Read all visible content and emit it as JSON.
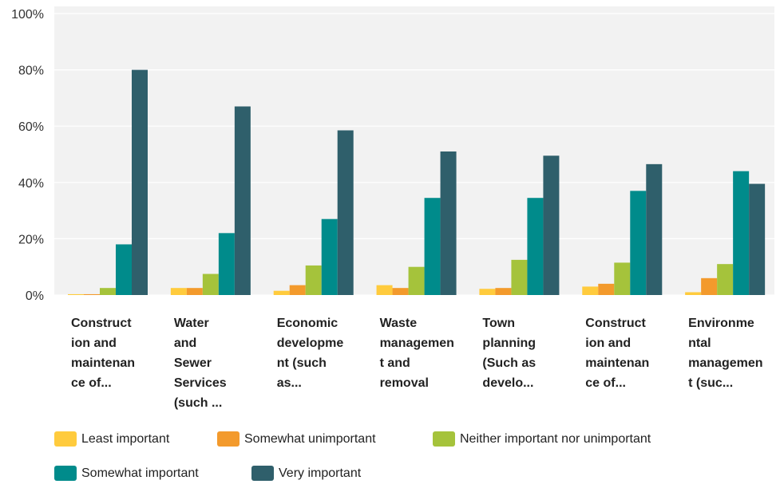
{
  "chart_data": {
    "type": "bar",
    "categories": [
      "Construct\nion and\nmaintenan\nce of...",
      "Water\nand\nSewer\nServices\n(such ...",
      "Economic\ndevelopme\nnt (such\nas...",
      "Waste\nmanagemen\nt and\nremoval",
      "Town\nplanning\n(Such as\ndevelo...",
      "Construct\nion and\nmaintenan\nce of...",
      "Environme\nntal\nmanagemen\nt (suc..."
    ],
    "series": [
      {
        "name": "Least important",
        "color": "#FFCB3D",
        "values": [
          0.3,
          2.5,
          1.5,
          3.5,
          2.2,
          3.0,
          1.0
        ]
      },
      {
        "name": "Somewhat unimportant",
        "color": "#F39A2C",
        "values": [
          0.3,
          2.5,
          3.5,
          2.5,
          2.5,
          4.0,
          6.0
        ]
      },
      {
        "name": "Neither important nor unimportant",
        "color": "#A5C33B",
        "values": [
          2.5,
          7.5,
          10.5,
          10.0,
          12.5,
          11.5,
          11.0
        ]
      },
      {
        "name": "Somewhat important",
        "color": "#008B8B",
        "values": [
          18.0,
          22.0,
          27.0,
          34.5,
          34.5,
          37.0,
          44.0
        ]
      },
      {
        "name": "Very important",
        "color": "#2F5F6B",
        "values": [
          80.0,
          67.0,
          58.5,
          51.0,
          49.5,
          46.5,
          39.5
        ]
      }
    ],
    "yticks": [
      "0%",
      "20%",
      "40%",
      "60%",
      "80%",
      "100%"
    ],
    "ylim": [
      0,
      100
    ],
    "grid": true,
    "legend": "bottom"
  }
}
